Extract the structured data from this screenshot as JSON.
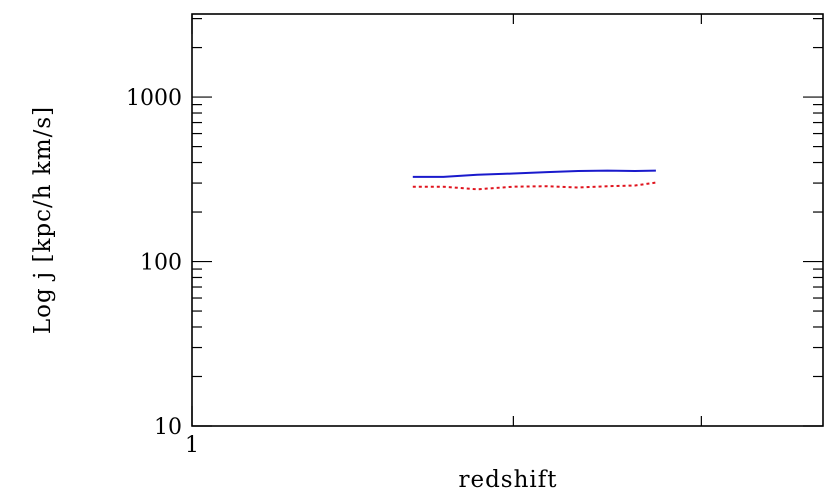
{
  "chart_data": {
    "type": "line",
    "xlabel": "redshift",
    "ylabel": "Log j [kpc/h km/s]",
    "xscale": "log",
    "yscale": "log",
    "xlim": [
      1,
      3.9
    ],
    "ylim": [
      10,
      3200
    ],
    "x_ticks": [
      {
        "value": 1,
        "label": "1"
      }
    ],
    "y_ticks": [
      {
        "value": 10,
        "label": "10"
      },
      {
        "value": 100,
        "label": "100"
      },
      {
        "value": 1000,
        "label": "1000"
      }
    ],
    "grid": false,
    "series": [
      {
        "color": "#1a1acc",
        "style": "solid",
        "x": [
          1.61,
          1.72,
          1.85,
          2.0,
          2.15,
          2.3,
          2.45,
          2.6,
          2.72
        ],
        "y": [
          327,
          327,
          337,
          343,
          350,
          355,
          357,
          355,
          357
        ]
      },
      {
        "color": "#e0141e",
        "style": "dotted",
        "x": [
          1.61,
          1.72,
          1.85,
          2.0,
          2.15,
          2.3,
          2.45,
          2.6,
          2.72
        ],
        "y": [
          285,
          285,
          275,
          285,
          287,
          282,
          287,
          290,
          302
        ]
      }
    ]
  }
}
